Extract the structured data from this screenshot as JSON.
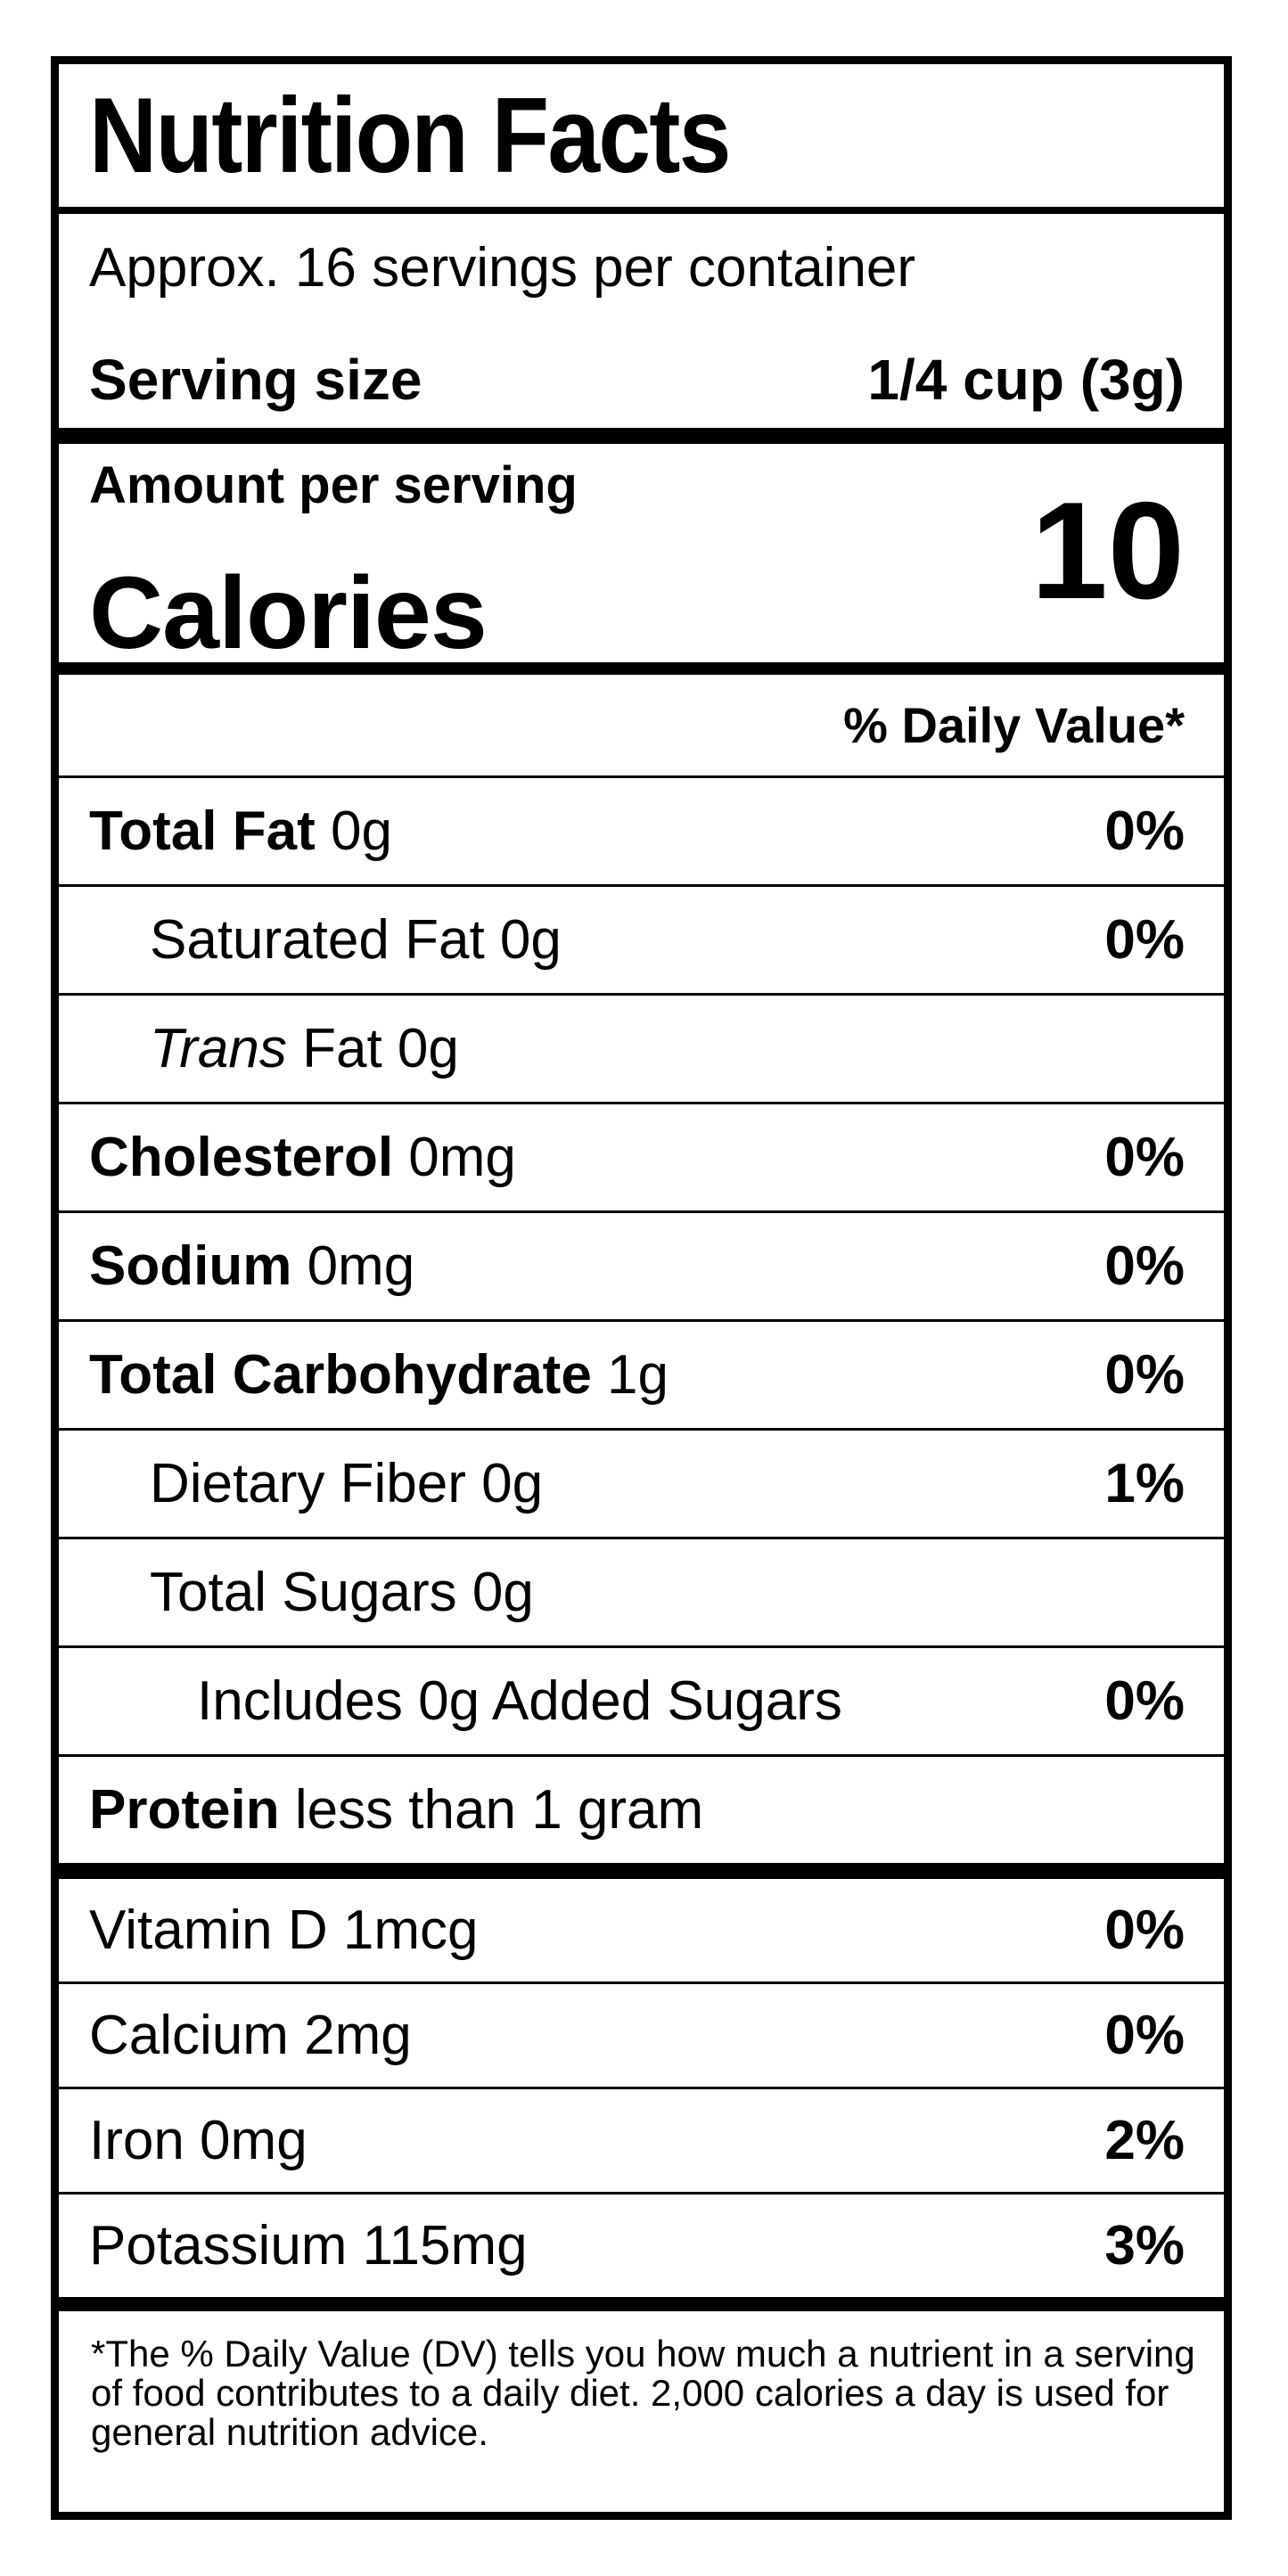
{
  "label": {
    "title": "Nutrition Facts",
    "servings_per_container": "Approx. 16 servings per container",
    "serving_size": {
      "label": "Serving size",
      "value": "1/4 cup (3g)"
    },
    "calories": {
      "heading": "Amount per serving",
      "word": "Calories",
      "value": "10"
    },
    "daily_value_header": "% Daily Value*",
    "rows": [
      {
        "name": "Total Fat",
        "amount": "0g",
        "dv": "0%"
      },
      {
        "name": "Saturated Fat",
        "amount": "0g",
        "dv": "0%"
      },
      {
        "name": "Trans",
        "amount": "Fat 0g",
        "dv": ""
      },
      {
        "name": "Cholesterol",
        "amount": "0mg",
        "dv": "0%"
      },
      {
        "name": "Sodium",
        "amount": "0mg",
        "dv": "0%"
      },
      {
        "name": "Total Carbohydrate",
        "amount": "1g",
        "dv": "0%"
      },
      {
        "name": "Dietary Fiber",
        "amount": "0g",
        "dv": "1%"
      },
      {
        "name": "Total Sugars",
        "amount": "0g",
        "dv": ""
      },
      {
        "name": "Includes 0g Added Sugars",
        "amount": "",
        "dv": "0%"
      },
      {
        "name": "Protein",
        "amount": "less than 1 gram",
        "dv": ""
      }
    ],
    "vitamins": [
      {
        "name": "Vitamin D 1mcg",
        "dv": "0%"
      },
      {
        "name": "Calcium 2mg",
        "dv": "0%"
      },
      {
        "name": "Iron 0mg",
        "dv": "2%"
      },
      {
        "name": "Potassium 115mg",
        "dv": "3%"
      }
    ],
    "footnote_lines": [
      "*The % Daily Value (DV) tells you how much a nutrient in a serving",
      "of food contributes to a daily diet. 2,000 calories a day is used for",
      "general nutrition advice."
    ]
  }
}
